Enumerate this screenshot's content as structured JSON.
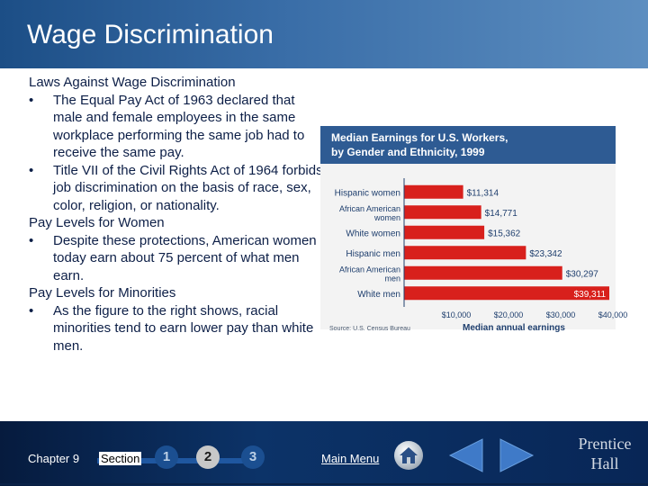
{
  "slide": {
    "title": "Wage Discrimination"
  },
  "content": {
    "heading1": "Laws Against Wage Discrimination",
    "bullet1": "The Equal Pay Act of 1963 declared that male and female employees in the same workplace performing the same job had to receive the same pay.",
    "bullet2": "Title VII of the Civil Rights Act of 1964 forbids job discrimination on the basis of race, sex, color, religion, or nationality.",
    "heading2": "Pay Levels for Women",
    "bullet3": "Despite these protections, American women today earn about 75 percent of what men earn.",
    "heading3": "Pay Levels for Minorities",
    "bullet4": "As the figure to the right shows, racial minorities tend to earn lower pay than white men.",
    "bullet_symbol": "•"
  },
  "chart_data": {
    "type": "bar",
    "orientation": "horizontal",
    "title_line1": "Median Earnings for U.S. Workers,",
    "title_line2": "by Gender and Ethnicity, 1999",
    "categories": [
      "Hispanic women",
      "African American women",
      "White women",
      "Hispanic men",
      "African American men",
      "White men"
    ],
    "category_lines": [
      [
        "Hispanic women"
      ],
      [
        "African American",
        "women"
      ],
      [
        "White women"
      ],
      [
        "Hispanic men"
      ],
      [
        "African American",
        "men"
      ],
      [
        "White men"
      ]
    ],
    "values": [
      11314,
      14771,
      15362,
      23342,
      30297,
      39311
    ],
    "value_labels": [
      "$11,314",
      "$14,771",
      "$15,362",
      "$23,342",
      "$30,297",
      "$39,311"
    ],
    "xlim": [
      0,
      40000
    ],
    "xtick_values": [
      10000,
      20000,
      30000,
      40000
    ],
    "xtick_labels": [
      "$10,000",
      "$20,000",
      "$30,000",
      "$40,000"
    ],
    "xlabel": "Median annual earnings",
    "source": "Source: U.S. Census Bureau",
    "bar_color": "#d8201c",
    "highlight_label_color": "#ffffff"
  },
  "footer": {
    "chapter": "Chapter 9",
    "section": "Section",
    "section_numbers": [
      "1",
      "2",
      "3"
    ],
    "main_menu": "Main Menu",
    "brand_line1": "Prentice",
    "brand_line2": "Hall"
  }
}
